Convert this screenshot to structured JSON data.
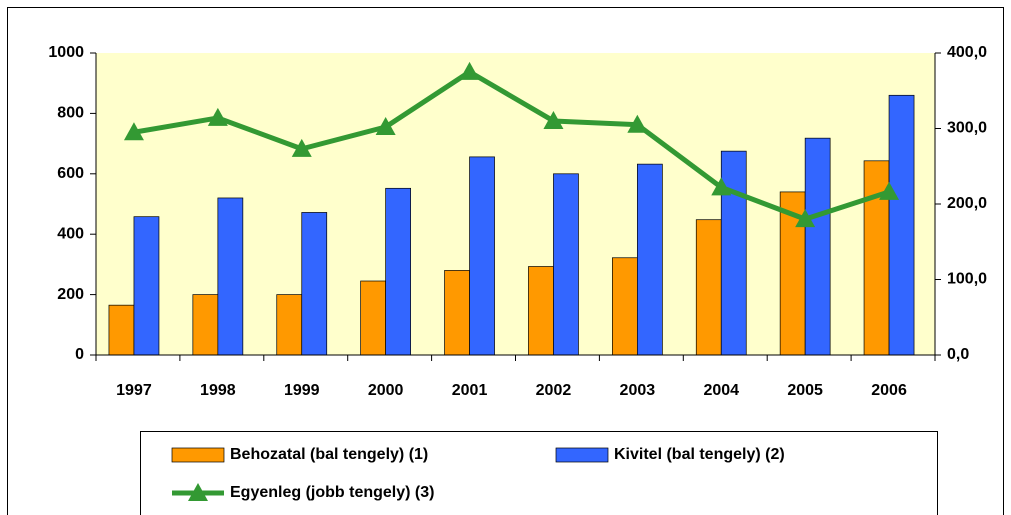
{
  "chart_data": {
    "type": "bar-line",
    "categories": [
      "1997",
      "1998",
      "1999",
      "2000",
      "2001",
      "2002",
      "2003",
      "2004",
      "2005",
      "2006"
    ],
    "series": [
      {
        "name": "Behozatal (bal tengely) (1)",
        "color": "#ff9900",
        "type": "bar",
        "values": [
          165,
          200,
          200,
          245,
          280,
          293,
          322,
          448,
          540,
          643
        ]
      },
      {
        "name": "Kivitel (bal tengely) (2)",
        "color": "#3366ff",
        "type": "bar",
        "values": [
          458,
          520,
          472,
          552,
          656,
          600,
          632,
          675,
          718,
          860
        ]
      },
      {
        "name": "Egyenleg (jobb tengely) (3)",
        "color": "#339933",
        "type": "line",
        "axis": "y2",
        "values": [
          295,
          314,
          273,
          302,
          375,
          310,
          305,
          222,
          180,
          216
        ]
      }
    ],
    "ylim": [
      0,
      1000
    ],
    "yticks": [
      0,
      200,
      400,
      600,
      800,
      1000
    ],
    "y2lim": [
      0,
      400
    ],
    "y2ticks": [
      {
        "value": 0,
        "label": "0,0"
      },
      {
        "value": 100,
        "label": "100,0"
      },
      {
        "value": 200,
        "label": "200,0"
      },
      {
        "value": 300,
        "label": "300,0"
      },
      {
        "value": 400,
        "label": "400,0"
      }
    ],
    "legend": "bottom"
  }
}
